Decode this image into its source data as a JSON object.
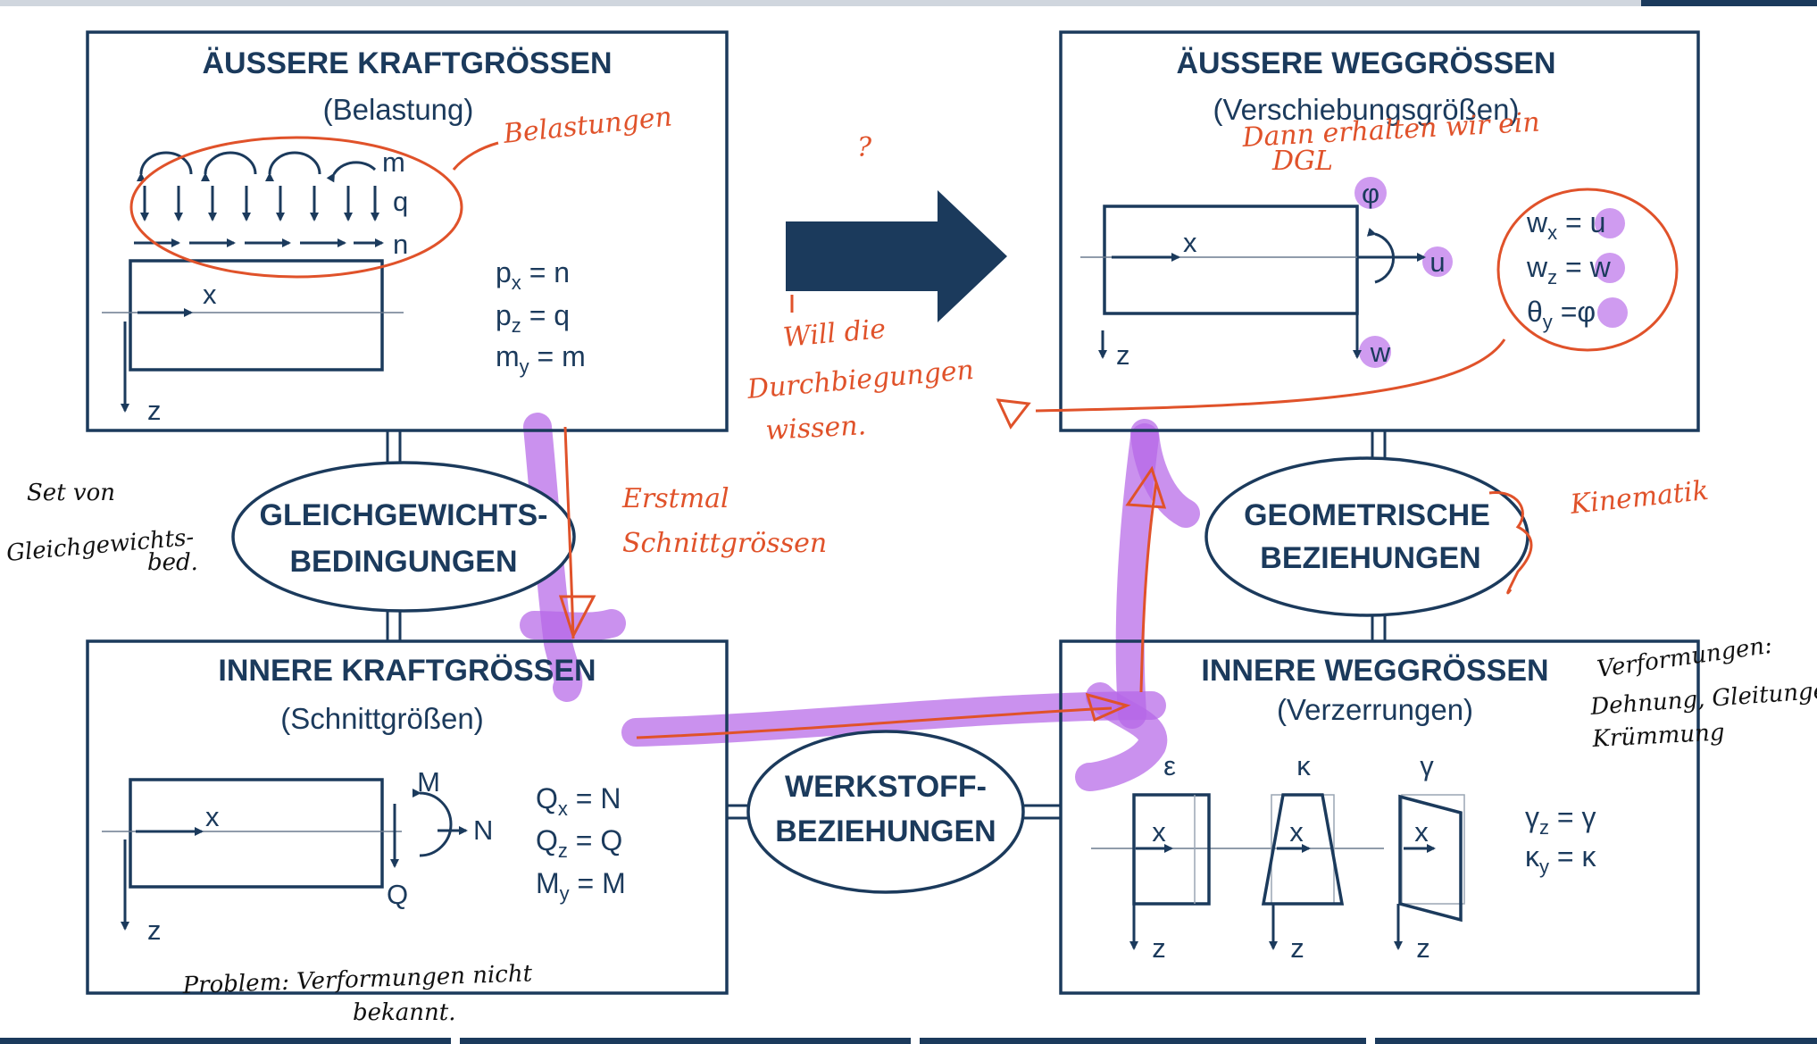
{
  "diagram": {
    "outer_forces": {
      "title": "ÄUSSERE KRAFTGRÖSSEN",
      "subtitle": "(Belastung)",
      "load_labels": {
        "m": "m",
        "q": "q",
        "n": "n"
      },
      "axis": {
        "x": "x",
        "z": "z"
      },
      "equations": [
        {
          "lhs": "p",
          "sub": "x",
          "rhs": " = n"
        },
        {
          "lhs": "p",
          "sub": "z",
          "rhs": " = q"
        },
        {
          "lhs": "m",
          "sub": "y",
          "rhs": " = m"
        }
      ]
    },
    "outer_displacements": {
      "title": "ÄUSSERE WEGGRÖSSEN",
      "subtitle": "(Verschiebungsgrößen)",
      "labels": {
        "phi": "φ",
        "u": "u",
        "w": "w",
        "x": "x",
        "z": "z"
      },
      "equations": [
        {
          "lhs": "w",
          "sub": "x",
          "eq": " = ",
          "rhs": "u"
        },
        {
          "lhs": "w",
          "sub": "z",
          "eq": " = ",
          "rhs": "w"
        },
        {
          "lhs": "θ",
          "sub": "y",
          "eq": "  =",
          "rhs": "φ"
        }
      ]
    },
    "inner_forces": {
      "title": "INNERE KRAFTGRÖSSEN",
      "subtitle": "(Schnittgrößen)",
      "labels": {
        "M": "M",
        "N": "N",
        "Q": "Q",
        "x": "x",
        "z": "z"
      },
      "equations": [
        {
          "lhs": "Q",
          "sub": "x",
          "rhs": " = N"
        },
        {
          "lhs": "Q",
          "sub": "z",
          "rhs": " = Q"
        },
        {
          "lhs": "M",
          "sub": "y",
          "rhs": "  = M"
        }
      ]
    },
    "inner_displacements": {
      "title": "INNERE  WEGGRÖSSEN",
      "subtitle": "(Verzerrungen)",
      "greek": [
        "ε",
        "κ",
        "γ"
      ],
      "axis": {
        "x": "x",
        "z": "z"
      },
      "equations": [
        {
          "lhs": "γ",
          "sub": "z",
          "rhs": " = γ"
        },
        {
          "lhs": "κ",
          "sub": "y",
          "rhs": " = κ"
        }
      ]
    },
    "relations": {
      "equilibrium": [
        "GLEICHGEWICHTS-",
        "BEDINGUNGEN"
      ],
      "geometric": [
        "GEOMETRISCHE",
        "BEZIEHUNGEN"
      ],
      "material": [
        "WERKSTOFF-",
        "BEZIEHUNGEN"
      ]
    }
  },
  "annotations": {
    "belastungen": "Belastungen",
    "question_mark": "?",
    "dgl": [
      "Dann erhalten wir ein",
      "DGL"
    ],
    "will_die": [
      "Will die",
      "Durchbiegungen",
      "wissen."
    ],
    "erstmal": [
      "Erstmal",
      "Schnittgrössen"
    ],
    "kinematik": "Kinematik",
    "set_von": [
      "Set von",
      "Gleichgewichts-",
      "bed."
    ],
    "verformungen": [
      "Verformungen:",
      "Dehnung, Gleitungen",
      "Krümmung"
    ],
    "problem": [
      "Problem:  Verformungen  nicht",
      "bekannt."
    ]
  },
  "colors": {
    "navy": "#1b3a5c",
    "annotation_red": "#e0522a",
    "highlight_purple": "#b566e8",
    "annotation_black": "#111111"
  }
}
